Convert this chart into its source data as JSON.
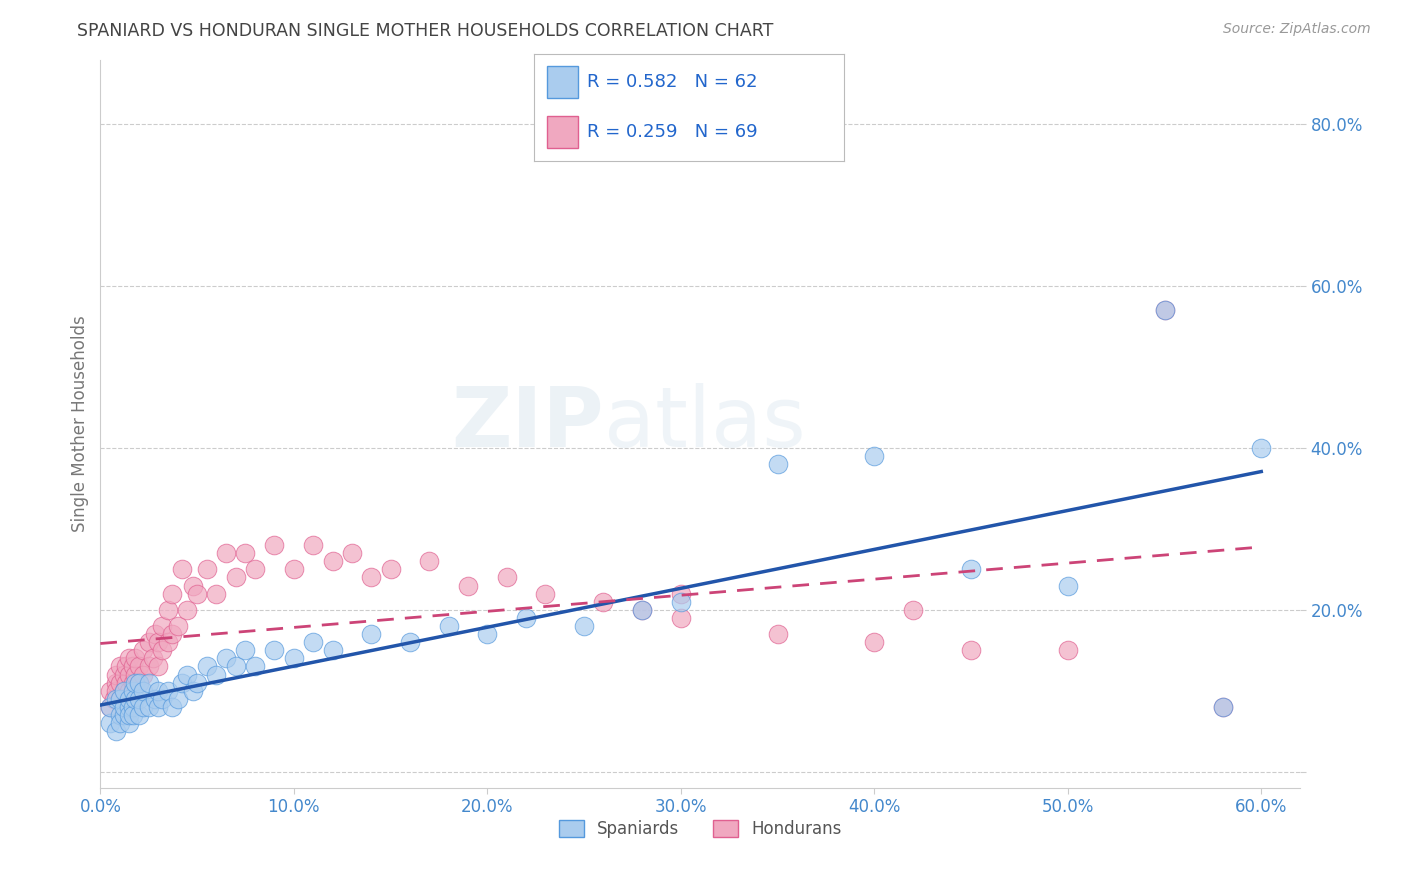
{
  "title": "SPANIARD VS HONDURAN SINGLE MOTHER HOUSEHOLDS CORRELATION CHART",
  "source_text": "Source: ZipAtlas.com",
  "ylabel": "Single Mother Households",
  "xlim": [
    0.0,
    0.62
  ],
  "ylim": [
    -0.02,
    0.88
  ],
  "xtick_vals": [
    0.0,
    0.1,
    0.2,
    0.3,
    0.4,
    0.5,
    0.6
  ],
  "ytick_vals": [
    0.0,
    0.2,
    0.4,
    0.6,
    0.8
  ],
  "ytick_labels": [
    "",
    "20.0%",
    "40.0%",
    "60.0%",
    "80.0%"
  ],
  "spaniard_color": "#aaccee",
  "honduran_color": "#f0a8c0",
  "spaniard_edge_color": "#5599dd",
  "honduran_edge_color": "#e06090",
  "spaniard_line_color": "#2255aa",
  "honduran_line_color": "#cc4477",
  "R_spaniard": "0.582",
  "N_spaniard": "62",
  "R_honduran": "0.259",
  "N_honduran": "69",
  "watermark_text": "ZIPatlas",
  "background_color": "#ffffff",
  "grid_color": "#cccccc",
  "tick_label_color": "#4488cc",
  "title_color": "#444444",
  "ylabel_color": "#777777",
  "spaniard_scatter_x": [
    0.005,
    0.005,
    0.008,
    0.008,
    0.01,
    0.01,
    0.01,
    0.012,
    0.012,
    0.012,
    0.015,
    0.015,
    0.015,
    0.015,
    0.017,
    0.017,
    0.017,
    0.018,
    0.018,
    0.02,
    0.02,
    0.02,
    0.022,
    0.022,
    0.025,
    0.025,
    0.028,
    0.03,
    0.03,
    0.032,
    0.035,
    0.037,
    0.04,
    0.042,
    0.045,
    0.048,
    0.05,
    0.055,
    0.06,
    0.065,
    0.07,
    0.075,
    0.08,
    0.09,
    0.1,
    0.11,
    0.12,
    0.14,
    0.16,
    0.18,
    0.2,
    0.22,
    0.25,
    0.28,
    0.3,
    0.35,
    0.4,
    0.45,
    0.5,
    0.55,
    0.58,
    0.6
  ],
  "spaniard_scatter_y": [
    0.06,
    0.08,
    0.05,
    0.09,
    0.07,
    0.09,
    0.06,
    0.07,
    0.08,
    0.1,
    0.06,
    0.08,
    0.09,
    0.07,
    0.08,
    0.1,
    0.07,
    0.09,
    0.11,
    0.07,
    0.09,
    0.11,
    0.08,
    0.1,
    0.08,
    0.11,
    0.09,
    0.08,
    0.1,
    0.09,
    0.1,
    0.08,
    0.09,
    0.11,
    0.12,
    0.1,
    0.11,
    0.13,
    0.12,
    0.14,
    0.13,
    0.15,
    0.13,
    0.15,
    0.14,
    0.16,
    0.15,
    0.17,
    0.16,
    0.18,
    0.17,
    0.19,
    0.18,
    0.2,
    0.21,
    0.38,
    0.39,
    0.25,
    0.23,
    0.57,
    0.08,
    0.4
  ],
  "honduran_scatter_x": [
    0.005,
    0.005,
    0.007,
    0.008,
    0.008,
    0.008,
    0.01,
    0.01,
    0.01,
    0.012,
    0.012,
    0.013,
    0.013,
    0.015,
    0.015,
    0.015,
    0.017,
    0.017,
    0.018,
    0.018,
    0.02,
    0.02,
    0.022,
    0.022,
    0.025,
    0.025,
    0.027,
    0.028,
    0.03,
    0.03,
    0.032,
    0.032,
    0.035,
    0.035,
    0.037,
    0.037,
    0.04,
    0.042,
    0.045,
    0.048,
    0.05,
    0.055,
    0.06,
    0.065,
    0.07,
    0.075,
    0.08,
    0.09,
    0.1,
    0.11,
    0.12,
    0.13,
    0.14,
    0.15,
    0.17,
    0.19,
    0.21,
    0.23,
    0.26,
    0.28,
    0.3,
    0.35,
    0.4,
    0.45,
    0.5,
    0.55,
    0.58,
    0.3,
    0.42
  ],
  "honduran_scatter_y": [
    0.08,
    0.1,
    0.09,
    0.11,
    0.1,
    0.12,
    0.09,
    0.11,
    0.13,
    0.1,
    0.12,
    0.11,
    0.13,
    0.1,
    0.12,
    0.14,
    0.11,
    0.13,
    0.12,
    0.14,
    0.11,
    0.13,
    0.12,
    0.15,
    0.13,
    0.16,
    0.14,
    0.17,
    0.13,
    0.16,
    0.15,
    0.18,
    0.16,
    0.2,
    0.17,
    0.22,
    0.18,
    0.25,
    0.2,
    0.23,
    0.22,
    0.25,
    0.22,
    0.27,
    0.24,
    0.27,
    0.25,
    0.28,
    0.25,
    0.28,
    0.26,
    0.27,
    0.24,
    0.25,
    0.26,
    0.23,
    0.24,
    0.22,
    0.21,
    0.2,
    0.19,
    0.17,
    0.16,
    0.15,
    0.15,
    0.57,
    0.08,
    0.22,
    0.2
  ]
}
